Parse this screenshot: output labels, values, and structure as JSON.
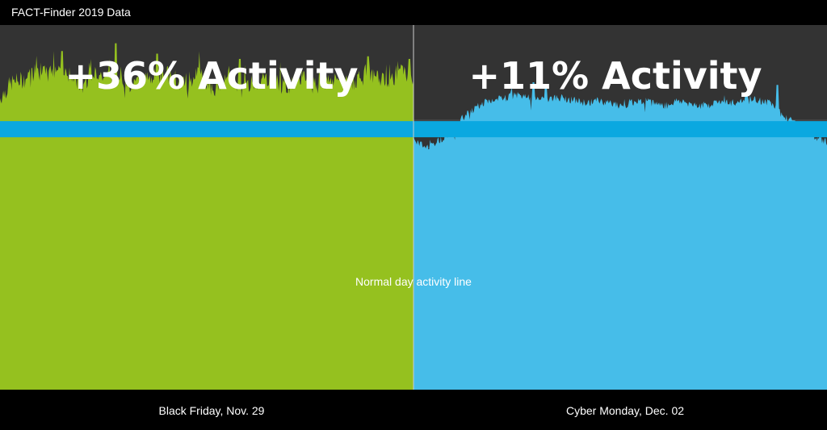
{
  "header": {
    "title": "FACT-Finder 2019 Data"
  },
  "colors": {
    "background": "#333333",
    "black_friday": "#95c11f",
    "cyber_monday": "#46bde9",
    "normal_line": "#0aa8e0",
    "grid": "#555555"
  },
  "chart_data": [
    {
      "type": "area",
      "name": "Black Friday, Nov. 29",
      "headline": "+36% Activity",
      "xlabel": "Black Friday, Nov. 29",
      "ylim": [
        0,
        140
      ],
      "baseline_label": "Normal day activity line",
      "baseline_value": 100,
      "y_profile": [
        112,
        118,
        119,
        122,
        121,
        124,
        120,
        117,
        123,
        119,
        121,
        116,
        120,
        118,
        122,
        117,
        119,
        121,
        115,
        120,
        118,
        117,
        119,
        120,
        116,
        118,
        121,
        117,
        119,
        120,
        118,
        121,
        120,
        119,
        122,
        118
      ],
      "spikes": [
        [
          0.28,
          133
        ],
        [
          0.15,
          130
        ],
        [
          0.38,
          129
        ],
        [
          0.58,
          127
        ],
        [
          0.89,
          128
        ],
        [
          0.99,
          127
        ]
      ]
    },
    {
      "type": "area",
      "name": "Cyber Monday, Dec. 02",
      "headline": "+11% Activity",
      "xlabel": "Cyber Monday, Dec. 02",
      "ylim": [
        0,
        140
      ],
      "baseline_label": "Normal day activity line",
      "baseline_value": 100,
      "y_profile": [
        96,
        93,
        95,
        98,
        103,
        107,
        110,
        111,
        112,
        113,
        112,
        111,
        112,
        112,
        111,
        110,
        111,
        110,
        109,
        110,
        111,
        110,
        109,
        111,
        110,
        109,
        110,
        111,
        110,
        112,
        111,
        110,
        106,
        103,
        99,
        97,
        95
      ],
      "spikes": [
        [
          0.29,
          118
        ],
        [
          0.32,
          117
        ],
        [
          0.88,
          117
        ]
      ]
    }
  ]
}
